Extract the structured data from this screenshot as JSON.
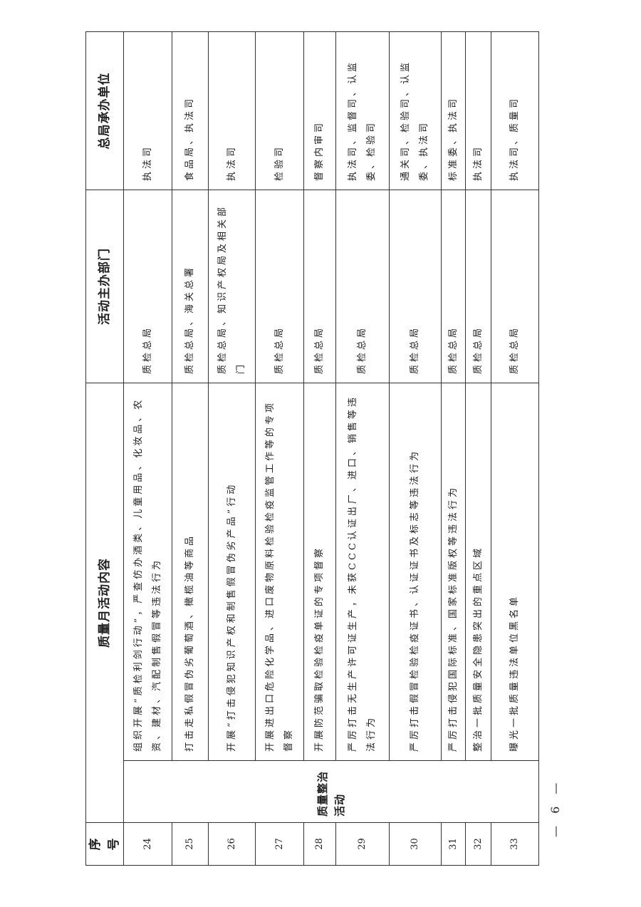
{
  "table": {
    "headers": {
      "index": "序号",
      "content": "质量月活动内容",
      "host": "活动主办部门",
      "undertaker": "总局承办单位"
    },
    "category": "质量整治活动",
    "rows": [
      {
        "no": "24",
        "content": "组织开展“质检利剑行动”，严查仿办酒类、儿童用品、化妆品、农资、建材、汽配制售假冒等违法行为",
        "host": "质检总局",
        "undertaker": "执法司"
      },
      {
        "no": "25",
        "content": "打击走私假冒伪劣葡萄酒、橄榄油等商品",
        "host": "质检总局、海关总署",
        "undertaker": "食品局、执法司"
      },
      {
        "no": "26",
        "content": "开展“打击侵犯知识产权和制售假冒伪劣产品”行动",
        "host": "质检总局、知识产权局及相关部门",
        "undertaker": "执法司"
      },
      {
        "no": "27",
        "content": "开展进出口危险化学品、进口废物原料检验检疫监管工作等的专项督察",
        "host": "质检总局",
        "undertaker": "检验司"
      },
      {
        "no": "28",
        "content": "开展防范骗取检验检疫单证的专项督察",
        "host": "质检总局",
        "undertaker": "督察内审司"
      },
      {
        "no": "29",
        "content": "严厉打击无生产许可证生产，未获CCC认证出厂、进口、销售等违法行为",
        "host": "质检总局",
        "undertaker": "执法司、监督司、认监委、检验司"
      },
      {
        "no": "30",
        "content": "严厉打击假冒检验检疫证书、认证证书及标志等违法行为",
        "host": "质检总局",
        "undertaker": "通关司、检验司、认监委、执法司"
      },
      {
        "no": "31",
        "content": "严厉打击侵犯国际标准、国家标准版权等违法行为",
        "host": "质检总局",
        "undertaker": "标准委、执法司"
      },
      {
        "no": "32",
        "content": "整治一批质量安全隐患突出的重点区域",
        "host": "质检总局",
        "undertaker": "执法司"
      },
      {
        "no": "33",
        "content": "曝光一批质量违法单位黑名单",
        "host": "质检总局",
        "undertaker": "执法司、质量司"
      }
    ]
  },
  "footer": {
    "page_number": "— 6 —"
  }
}
